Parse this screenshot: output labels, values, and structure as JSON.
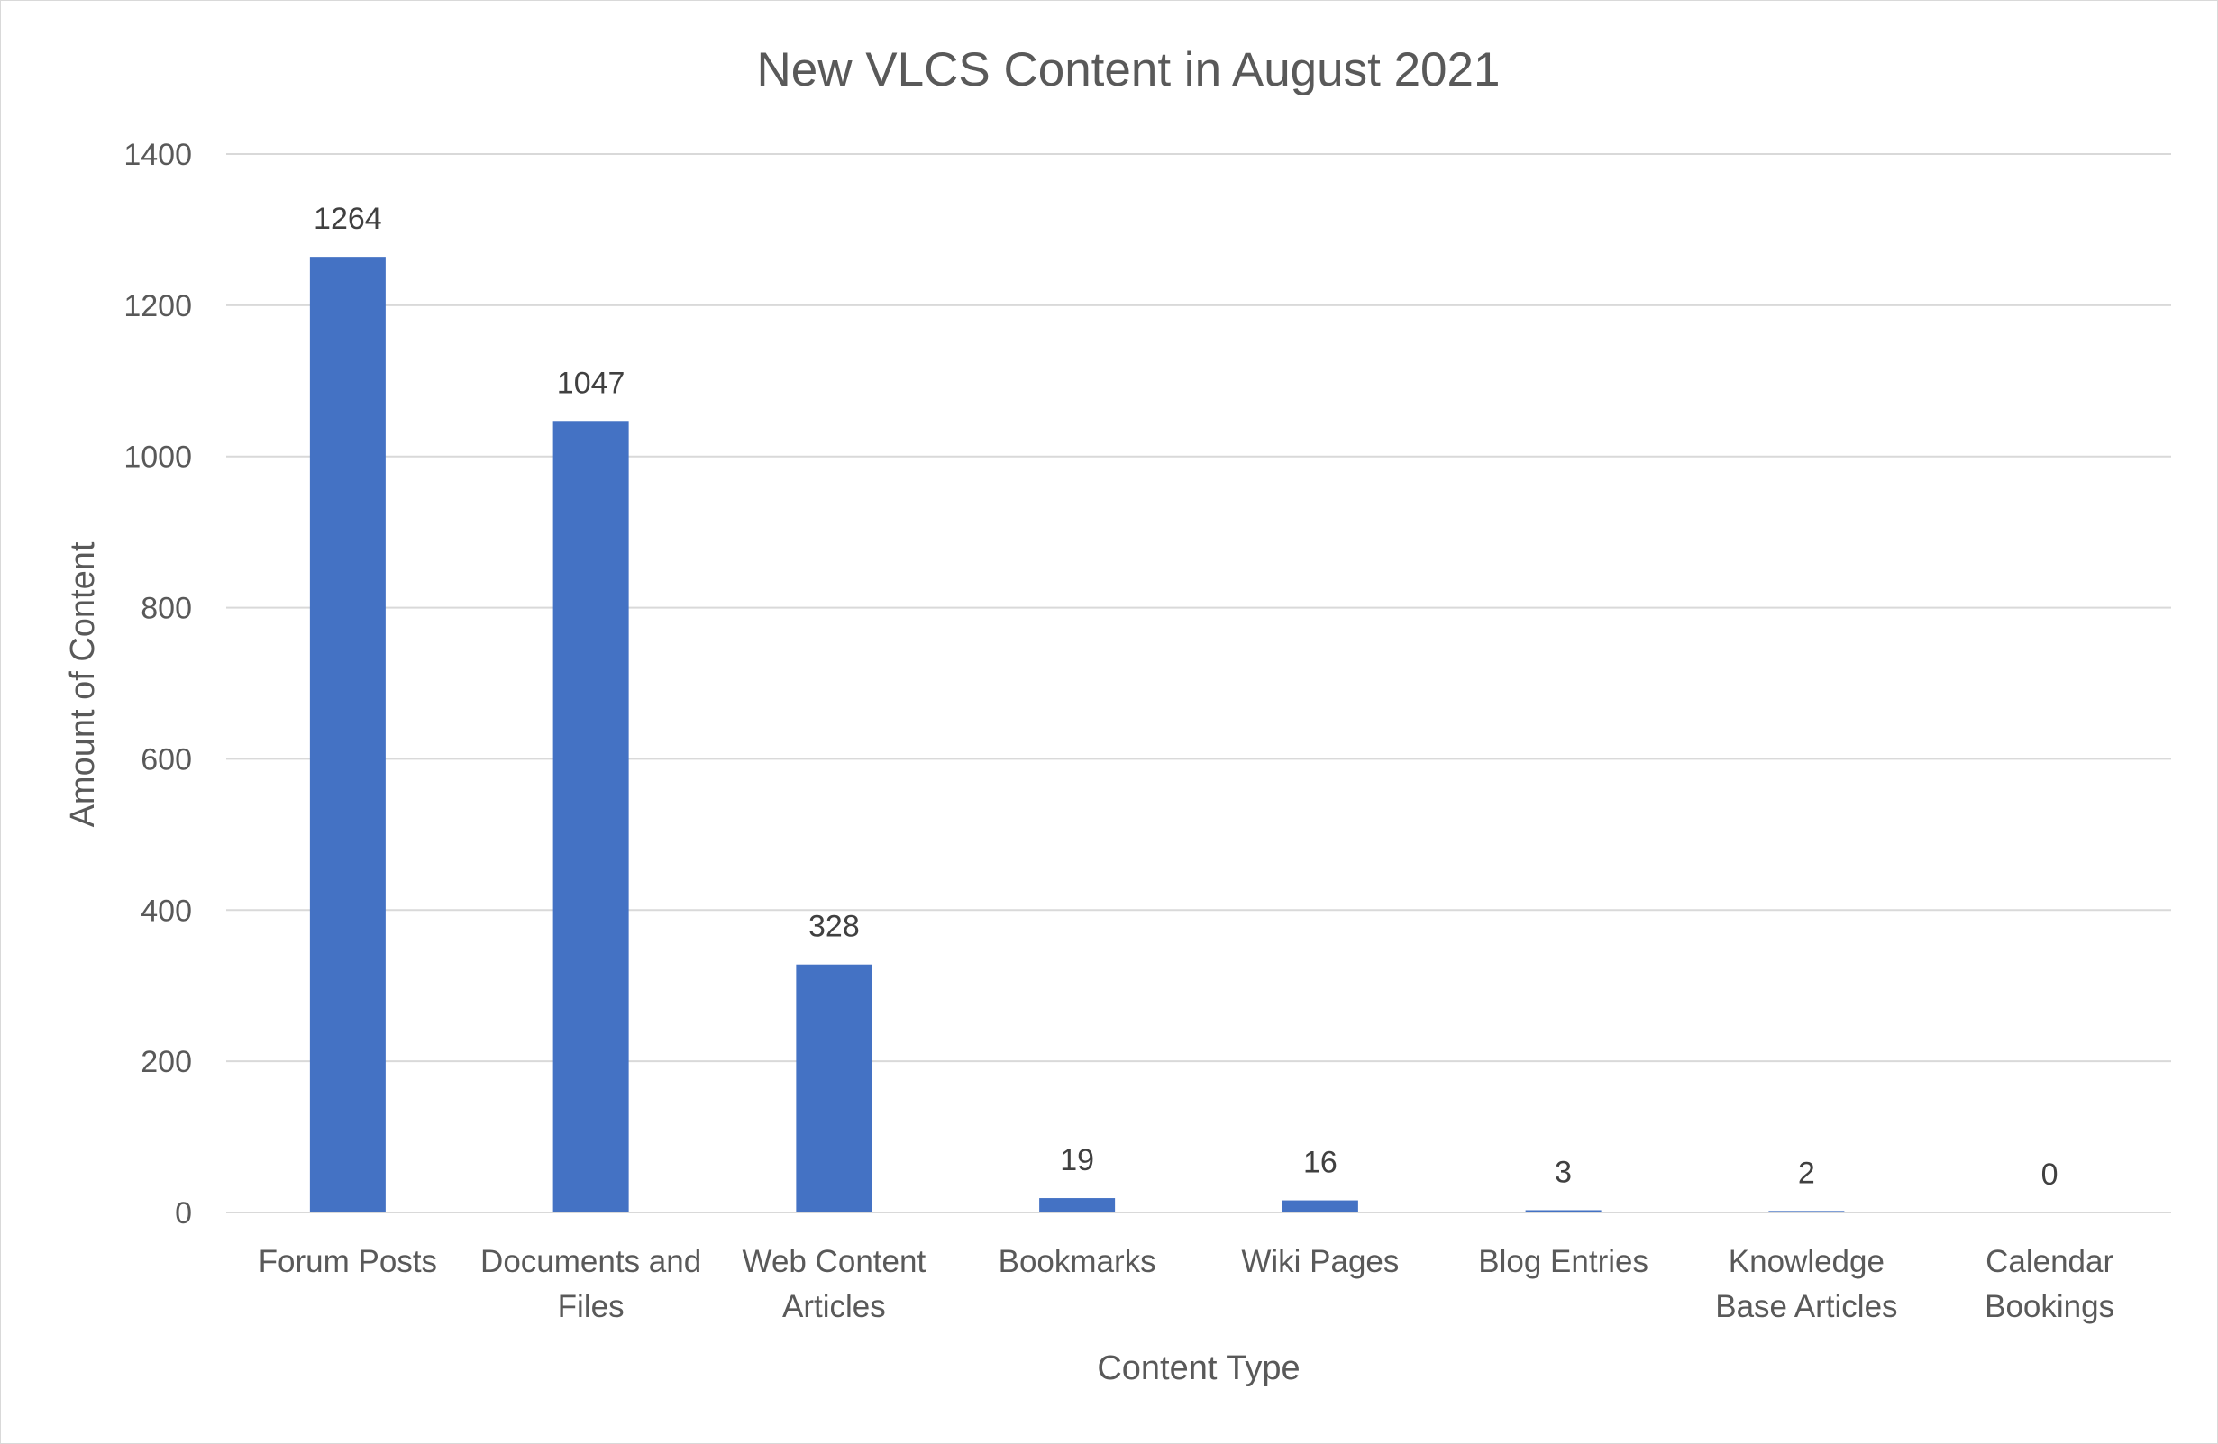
{
  "chart_data": {
    "type": "bar",
    "title": "New VLCS Content in August 2021",
    "xlabel": "Content Type",
    "ylabel": "Amount of Content",
    "categories": [
      [
        "Forum Posts"
      ],
      [
        "Documents and",
        "Files"
      ],
      [
        "Web Content",
        "Articles"
      ],
      [
        "Bookmarks"
      ],
      [
        "Wiki Pages"
      ],
      [
        "Blog Entries"
      ],
      [
        "Knowledge",
        "Base Articles"
      ],
      [
        "Calendar",
        "Bookings"
      ]
    ],
    "values": [
      1264,
      1047,
      328,
      19,
      16,
      3,
      2,
      0
    ],
    "data_labels": [
      "1264",
      "1047",
      "328",
      "19",
      "16",
      "3",
      "2",
      "0"
    ],
    "ylim": [
      0,
      1400
    ],
    "yticks": [
      0,
      200,
      400,
      600,
      800,
      1000,
      1200,
      1400
    ],
    "ytick_labels": [
      "0",
      "200",
      "400",
      "600",
      "800",
      "1000",
      "1200",
      "1400"
    ],
    "grid": true,
    "legend": "none",
    "colors": {
      "bar": "#4472c4",
      "text": "#595959",
      "grid": "#d9d9d9"
    }
  }
}
